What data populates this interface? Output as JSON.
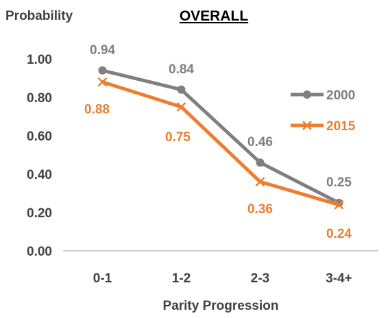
{
  "chart_data": {
    "type": "line",
    "title": "OVERALL",
    "ylabel": "Probability",
    "xlabel": "Parity Progression",
    "categories": [
      "0-1",
      "1-2",
      "2-3",
      "3-4+"
    ],
    "ylim": [
      0,
      1
    ],
    "yticks": [
      "0.00",
      "0.20",
      "0.40",
      "0.60",
      "0.80",
      "1.00"
    ],
    "grid": false,
    "legend_position": "right",
    "series": [
      {
        "name": "2000",
        "values": [
          0.94,
          0.84,
          0.46,
          0.25
        ],
        "labels": [
          "0.94",
          "0.84",
          "0.46",
          "0.25"
        ],
        "color": "#7f7f7f",
        "marker": "circle"
      },
      {
        "name": "2015",
        "values": [
          0.88,
          0.75,
          0.36,
          0.24
        ],
        "labels": [
          "0.88",
          "0.75",
          "0.36",
          "0.24"
        ],
        "color": "#ed7d31",
        "marker": "x"
      }
    ]
  }
}
